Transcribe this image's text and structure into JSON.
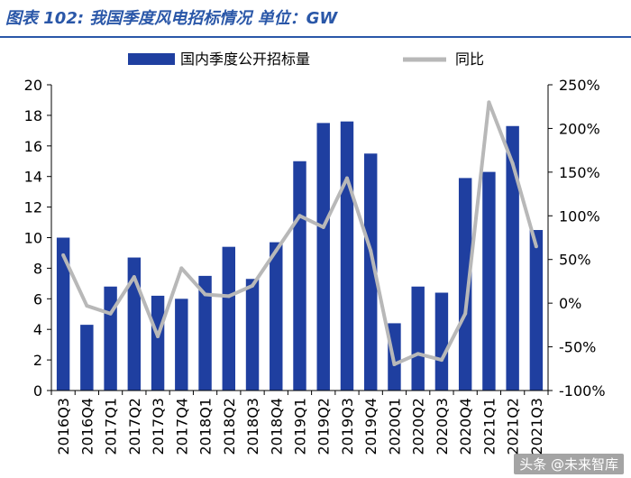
{
  "header": {
    "title": "图表 102: 我国季度风电招标情况 单位：GW"
  },
  "watermark": "头条 @未来智库",
  "chart_data": {
    "type": "bar+line",
    "categories": [
      "2016Q3",
      "2016Q4",
      "2017Q1",
      "2017Q2",
      "2017Q3",
      "2017Q4",
      "2018Q1",
      "2018Q2",
      "2018Q3",
      "2018Q4",
      "2019Q1",
      "2019Q2",
      "2019Q3",
      "2019Q4",
      "2020Q1",
      "2020Q2",
      "2020Q3",
      "2020Q4",
      "2021Q1",
      "2021Q2",
      "2021Q3"
    ],
    "series": [
      {
        "name": "国内季度公开招标量",
        "type": "bar",
        "axis": "left",
        "color": "#1f3fa0",
        "values": [
          10.0,
          4.3,
          6.8,
          8.7,
          6.2,
          6.0,
          7.5,
          9.4,
          7.3,
          9.7,
          15.0,
          17.5,
          17.6,
          15.5,
          4.4,
          6.8,
          6.4,
          13.9,
          14.3,
          17.3,
          10.5
        ]
      },
      {
        "name": "同比",
        "type": "line",
        "axis": "right",
        "color": "#b8b8b8",
        "values": [
          55,
          -3,
          -12,
          30,
          -38,
          40,
          10,
          8,
          20,
          60,
          100,
          87,
          143,
          60,
          -70,
          -58,
          -65,
          -12,
          230,
          160,
          65
        ]
      }
    ],
    "left_axis": {
      "min": 0,
      "max": 20,
      "ticks": [
        "0",
        "2",
        "4",
        "6",
        "8",
        "10",
        "12",
        "14",
        "16",
        "18",
        "20"
      ]
    },
    "right_axis": {
      "min": -100,
      "max": 250,
      "ticks": [
        "-100%",
        "-50%",
        "0%",
        "50%",
        "100%",
        "150%",
        "200%",
        "250%"
      ]
    },
    "legend": {
      "placement": "top-center",
      "entries": [
        "国内季度公开招标量",
        "同比"
      ]
    }
  }
}
